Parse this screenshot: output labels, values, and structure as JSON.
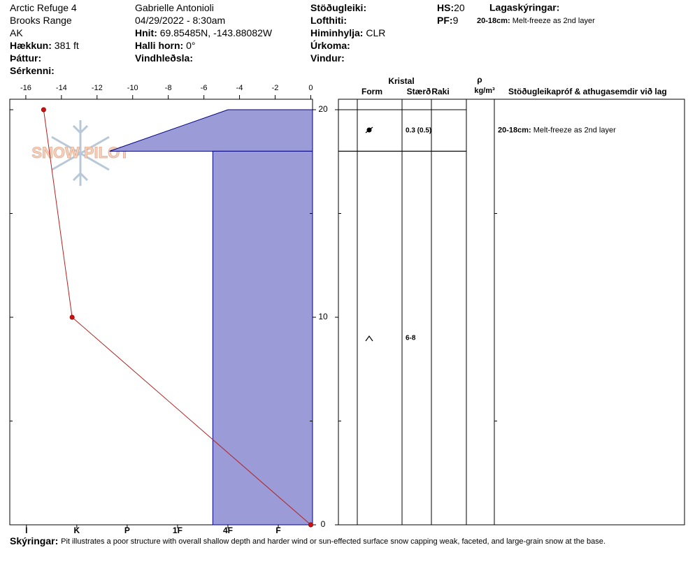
{
  "header": {
    "columns": [
      [
        {
          "value": "Arctic Refuge 4"
        },
        {
          "value": "Brooks Range"
        },
        {
          "value": "AK"
        },
        {
          "label": "Hækkun:",
          "value": "381 ft"
        },
        {
          "label": "Þáttur:"
        },
        {
          "label": "Sérkenni:"
        }
      ],
      [
        {
          "value": "Gabrielle Antonioli"
        },
        {
          "value": "04/29/2022 - 8:30am"
        },
        {
          "label": "Hnit:",
          "value": "69.85485N, -143.88082W"
        },
        {
          "label": "Halli horn:",
          "value": "0°"
        },
        {
          "label": "Vindhleðsla:"
        }
      ],
      [
        {
          "label": "Stöðugleiki:"
        },
        {
          "label": "Lofthiti:"
        },
        {
          "label": "Himinhylja:",
          "value": "CLR"
        },
        {
          "label": "Úrkoma:"
        },
        {
          "label": "Vindur:"
        }
      ],
      [
        {
          "label": "HS:",
          "value": 20
        },
        {
          "label": "PF:",
          "value": 9
        }
      ]
    ],
    "layer_notes_title": "Lagaskýringar:",
    "layer_notes": [
      {
        "label": "20-18cm:",
        "value": "Melt-freeze as 2nd layer"
      }
    ]
  },
  "chart_data": {
    "type": "snowpit",
    "watermark": "SNOW PILOT",
    "depth": {
      "ylim": [
        0,
        20
      ],
      "yticks": [
        0,
        10,
        20
      ],
      "yminorticks": [
        5,
        15
      ]
    },
    "temperature": {
      "xlim": [
        -16.9,
        0.1
      ],
      "xticks": [
        -16,
        -14,
        -12,
        -10,
        -8,
        -6,
        -4,
        -2,
        0
      ],
      "depths": [
        20,
        10,
        0
      ],
      "values": [
        -15,
        -13.4,
        0
      ],
      "color": "#b22222"
    },
    "hardness": {
      "lim": [
        0.32,
        6.33
      ],
      "ticks": [
        {
          "value": 6,
          "label": "I"
        },
        {
          "value": 5,
          "label": "K"
        },
        {
          "value": 4,
          "label": "P"
        },
        {
          "value": 3,
          "label": "1F"
        },
        {
          "value": 2,
          "label": "4F"
        },
        {
          "value": 1,
          "label": "F"
        }
      ],
      "color": "#9b9bd7",
      "edge": "#00007f"
    },
    "layers": [
      {
        "top": 20,
        "bottom": 18,
        "hardness_top": 2,
        "hardness_bottom": 4.35,
        "size": "0.3 (0.5)",
        "comment": {
          "label": "20-18cm:",
          "value": "Melt-freeze as 2nd layer"
        }
      },
      {
        "top": 18,
        "bottom": 0,
        "hardness_top": 2.3,
        "hardness_bottom": 2.3,
        "size": "6-8"
      }
    ]
  },
  "table": {
    "headers": [
      "Kristal",
      "Form",
      "Stærð",
      "Raki",
      "ρ",
      "kg/m³",
      "Stöðugleikapróf & athugasemdir við lag"
    ]
  },
  "footer": {
    "label": "Skýringar:",
    "text": "Pit illustrates a poor structure with overall shallow depth and harder wind or sun-effected surface snow capping weak, faceted, and large-grain snow at the base."
  }
}
